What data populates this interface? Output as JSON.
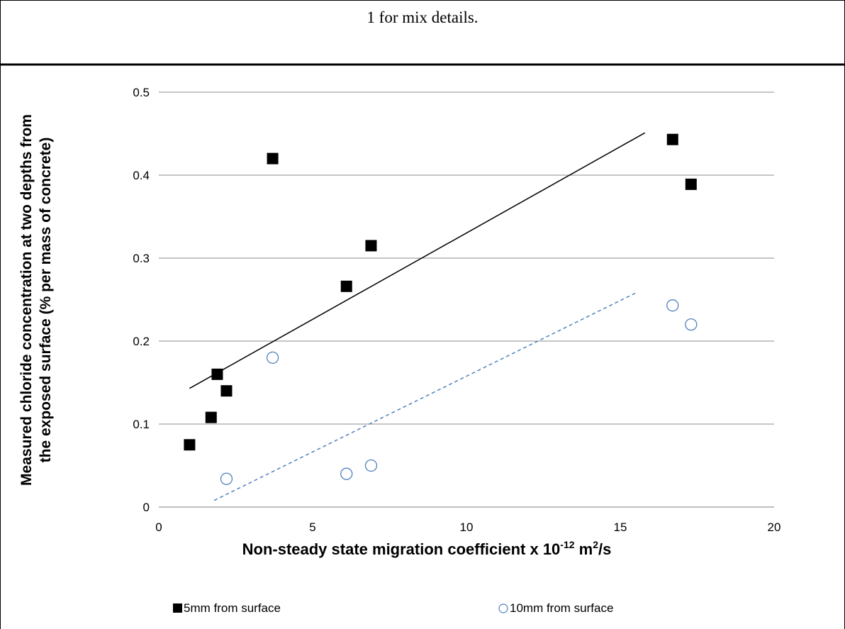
{
  "caption": "1 for mix details.",
  "chart_data": {
    "type": "scatter",
    "title": "",
    "xlabel_main": "Non-steady state migration coefficient x 10",
    "xlabel_exp": "-12",
    "xlabel_unit": " m",
    "xlabel_unit_exp": "2",
    "xlabel_tail": "/s",
    "ylabel_line1": "Measured chloride concentration at two depths from",
    "ylabel_line2": "the exposed surface (% per mass of concrete)",
    "xlim": [
      0,
      20
    ],
    "ylim": [
      0,
      0.5
    ],
    "xticks": [
      "0",
      "5",
      "10",
      "15",
      "20"
    ],
    "yticks": [
      "0",
      "0.1",
      "0.2",
      "0.3",
      "0.4",
      "0.5"
    ],
    "grid": "horizontal",
    "legend_position": "bottom",
    "series": [
      {
        "name": "5mm from surface",
        "marker": "filled-square",
        "color": "#000000",
        "points": [
          {
            "x": 1.0,
            "y": 0.075
          },
          {
            "x": 1.7,
            "y": 0.108
          },
          {
            "x": 1.9,
            "y": 0.16
          },
          {
            "x": 2.2,
            "y": 0.14
          },
          {
            "x": 3.7,
            "y": 0.42
          },
          {
            "x": 6.1,
            "y": 0.266
          },
          {
            "x": 6.9,
            "y": 0.315
          },
          {
            "x": 16.7,
            "y": 0.443
          },
          {
            "x": 17.3,
            "y": 0.389
          }
        ],
        "trendline": {
          "x": [
            1.0,
            15.8
          ],
          "y": [
            0.143,
            0.451
          ],
          "style": "solid"
        }
      },
      {
        "name": "10mm from surface",
        "marker": "open-circle",
        "color": "#4f81bd",
        "points": [
          {
            "x": 2.2,
            "y": 0.034
          },
          {
            "x": 3.7,
            "y": 0.18
          },
          {
            "x": 6.1,
            "y": 0.04
          },
          {
            "x": 6.9,
            "y": 0.05
          },
          {
            "x": 16.7,
            "y": 0.243
          },
          {
            "x": 17.3,
            "y": 0.22
          }
        ],
        "trendline": {
          "x": [
            1.8,
            15.5
          ],
          "y": [
            0.008,
            0.258
          ],
          "style": "dashed"
        }
      }
    ]
  }
}
